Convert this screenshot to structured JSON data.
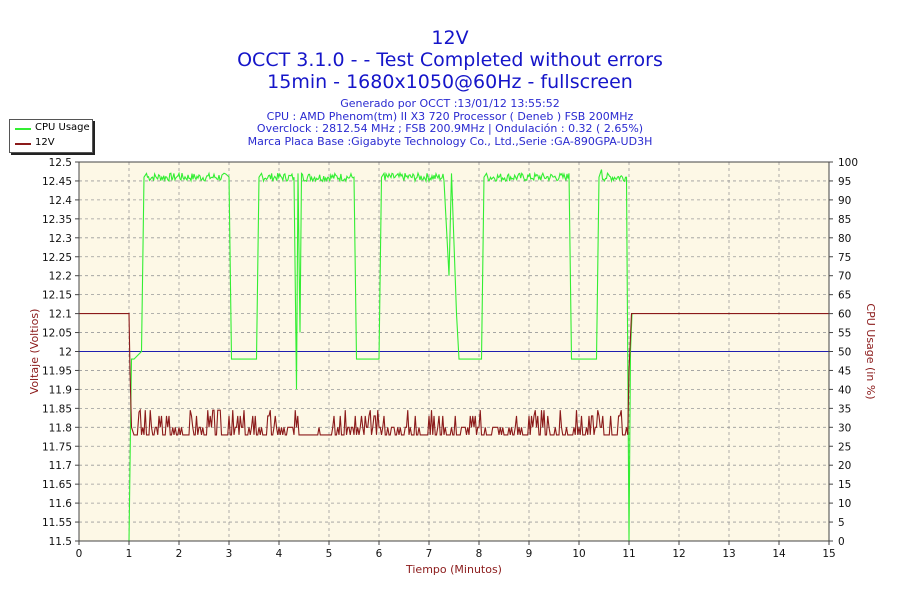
{
  "header": {
    "title": "12V",
    "line2": "OCCT 3.1.0 -  - Test Completed without errors",
    "line3": "15min - 1680x1050@60Hz - fullscreen",
    "info": [
      "Generado por OCCT :13/01/12 13:55:52",
      "CPU : AMD Phenom(tm) II X3 720 Processor ( Deneb ) FSB 200MHz",
      "Overclock : 2812.54 MHz ; FSB 200.9MHz | Ondulación : 0.32 ( 2.65%)",
      "Marca Placa Base :Gigabyte Technology Co., Ltd.,Serie :GA-890GPA-UD3H"
    ]
  },
  "colors": {
    "plot_bg": "#fdf8e6",
    "cpu": "#33ee33",
    "v12": "#8b1a1a",
    "ref": "#1f1fb0"
  },
  "chart_data": {
    "type": "line",
    "xlabel": "Tiempo (Minutos)",
    "ylabel_left": "Voltaje (Voltios)",
    "ylabel_right": "CPU Usage (in %)",
    "xlim": [
      0,
      15
    ],
    "ylim_left": [
      11.5,
      12.5
    ],
    "ylim_right": [
      0,
      100
    ],
    "xticks": [
      0,
      1,
      2,
      3,
      4,
      5,
      6,
      7,
      8,
      9,
      10,
      11,
      12,
      13,
      14,
      15
    ],
    "yticks_left": [
      "11.5",
      "11.55",
      "11.6",
      "11.65",
      "11.7",
      "11.75",
      "11.8",
      "11.85",
      "11.9",
      "11.95",
      "12",
      "12.05",
      "12.1",
      "12.15",
      "12.2",
      "12.25",
      "12.3",
      "12.35",
      "12.4",
      "12.45",
      "12.5"
    ],
    "yticks_right": [
      0,
      5,
      10,
      15,
      20,
      25,
      30,
      35,
      40,
      45,
      50,
      55,
      60,
      65,
      70,
      75,
      80,
      85,
      90,
      95,
      100
    ],
    "grid": true,
    "legend_position": "top-left, outside plot",
    "reference_line_left": 12.0,
    "series": [
      {
        "name": "CPU Usage",
        "axis": "right",
        "x": [
          0,
          0.98,
          1.0,
          1.03,
          1.05,
          1.1,
          1.25,
          1.3,
          1.35,
          2.0,
          3.0,
          3.05,
          3.1,
          3.55,
          3.6,
          3.65,
          4.3,
          4.35,
          4.38,
          4.42,
          4.45,
          5.5,
          5.55,
          5.6,
          6.0,
          6.05,
          6.1,
          7.3,
          7.4,
          7.45,
          7.55,
          7.6,
          7.65,
          8.05,
          8.1,
          8.15,
          9.8,
          9.85,
          9.9,
          10.35,
          10.4,
          10.45,
          10.95,
          11.0,
          11.03,
          11.06,
          11.1
        ],
        "values": [
          0,
          0,
          0,
          30,
          48,
          48,
          50,
          96,
          97,
          97,
          96,
          48,
          48,
          48,
          96,
          97,
          96,
          40,
          97,
          55,
          97,
          96,
          48,
          48,
          48,
          96,
          97,
          95,
          70,
          97,
          60,
          48,
          48,
          48,
          96,
          97,
          97,
          48,
          48,
          48,
          96,
          98,
          96,
          0,
          50,
          60,
          60
        ]
      },
      {
        "name": "12V",
        "axis": "left",
        "x": [
          0,
          1.0,
          1.02,
          1.05,
          1.1,
          1.2,
          1.5,
          2.0,
          2.5,
          3.0,
          3.5,
          4.0,
          4.5,
          5.0,
          5.5,
          6.0,
          6.5,
          7.0,
          7.5,
          8.0,
          8.5,
          9.0,
          9.5,
          10.0,
          10.5,
          10.95,
          11.0,
          11.05,
          11.1,
          15.0
        ],
        "values": [
          12.1,
          12.1,
          11.95,
          11.8,
          11.78,
          11.84,
          11.78,
          11.8,
          11.78,
          11.83,
          11.78,
          11.8,
          11.78,
          11.78,
          11.78,
          11.8,
          11.78,
          11.83,
          11.78,
          11.8,
          11.78,
          11.83,
          11.78,
          11.8,
          11.78,
          11.8,
          11.95,
          12.1,
          12.1,
          12.1
        ]
      }
    ]
  }
}
